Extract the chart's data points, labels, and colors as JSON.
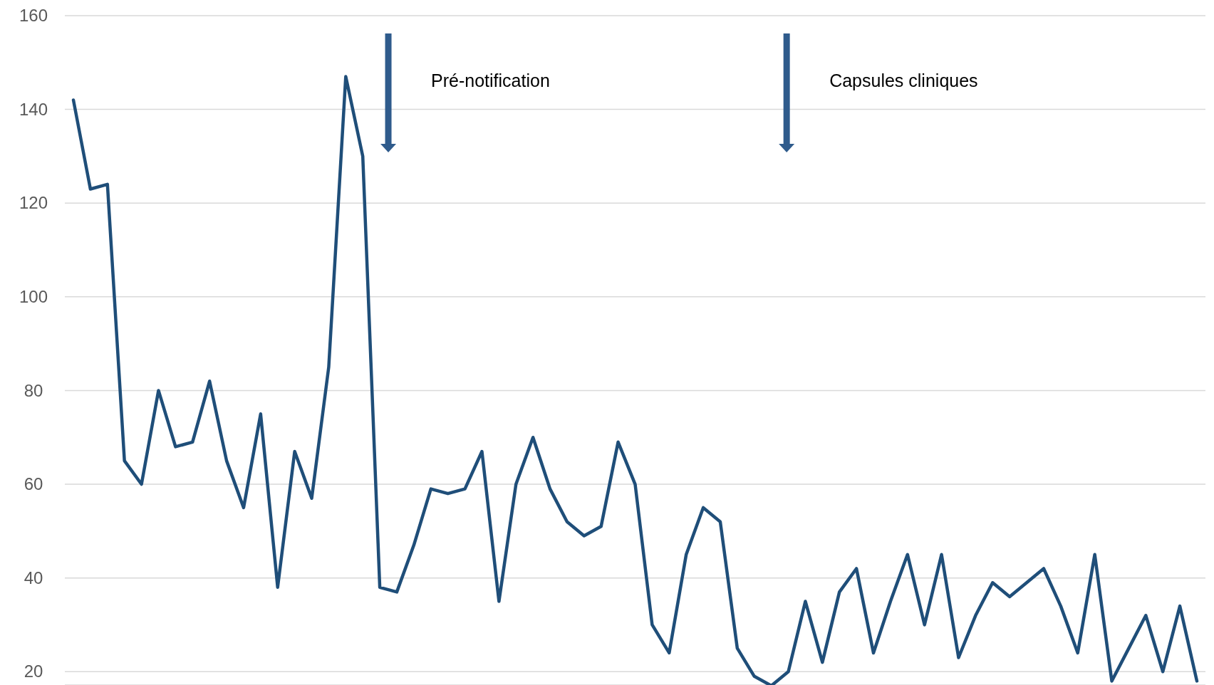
{
  "chart_data": {
    "type": "line",
    "categories": [
      null,
      null,
      null,
      null,
      null,
      null,
      null,
      null,
      null,
      null,
      null,
      null,
      null,
      null,
      null,
      null,
      null,
      null,
      null,
      null,
      null,
      null,
      null,
      null,
      null,
      null,
      null,
      null,
      null,
      null,
      null,
      null,
      null,
      null,
      null,
      null,
      null,
      null,
      null,
      null,
      null,
      null,
      null,
      null,
      null,
      null,
      null,
      null,
      null,
      null,
      null,
      null,
      null,
      null,
      null,
      null,
      null,
      null,
      null,
      null,
      null,
      null,
      null,
      null,
      null,
      null,
      null
    ],
    "series": [
      {
        "color": "#1f4e79",
        "values": [
          142,
          123,
          124,
          65,
          60,
          80,
          68,
          69,
          82,
          65,
          55,
          75,
          38,
          67,
          57,
          85,
          147,
          130,
          38,
          37,
          47,
          59,
          58,
          59,
          67,
          35,
          60,
          70,
          59,
          52,
          49,
          51,
          69,
          60,
          30,
          24,
          45,
          55,
          52,
          25,
          19,
          17,
          20,
          35,
          22,
          37,
          42,
          24,
          35,
          45,
          30,
          45,
          23,
          32,
          39,
          36,
          39,
          42,
          34,
          24,
          45,
          18,
          25,
          32,
          20,
          34,
          18
        ]
      }
    ],
    "ylim": [
      17,
      160
    ],
    "yticks": [
      20,
      40,
      60,
      80,
      100,
      120,
      140,
      160
    ],
    "grid": "y",
    "marker": "none",
    "line_style": "solid",
    "annotations": [
      "Pré-notification",
      "Capsules cliniques"
    ]
  }
}
